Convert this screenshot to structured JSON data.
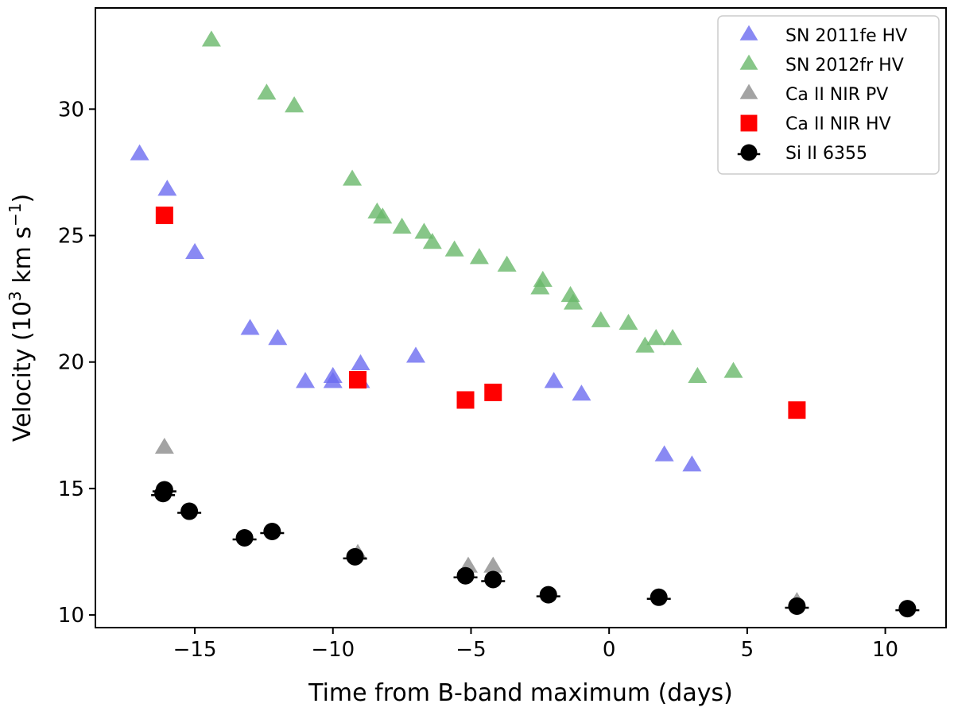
{
  "chart_data": {
    "type": "scatter",
    "xlabel": "Time from B-band maximum (days)",
    "ylabel": {
      "prefix": "Velocity (10",
      "sup1": "3",
      "mid": " km s",
      "sup2": "−1",
      "suffix": ")"
    },
    "xlim": [
      -18.6,
      12.2
    ],
    "ylim": [
      9.5,
      34.0
    ],
    "xticks": [
      -15,
      -10,
      -5,
      0,
      5,
      10
    ],
    "xtick_labels": [
      "−15",
      "−10",
      "−5",
      "0",
      "5",
      "10"
    ],
    "yticks": [
      10,
      15,
      20,
      25,
      30
    ],
    "ytick_labels": [
      "10",
      "15",
      "20",
      "25",
      "30"
    ],
    "grid": false,
    "legend_position": "top-right",
    "series": [
      {
        "name": "SN 2011fe HV",
        "marker": "triangle",
        "color": "#6b6bf0",
        "points": [
          [
            -17.0,
            28.2
          ],
          [
            -16.0,
            26.8
          ],
          [
            -15.0,
            24.3
          ],
          [
            -13.0,
            21.3
          ],
          [
            -12.0,
            20.9
          ],
          [
            -11.0,
            19.2
          ],
          [
            -10.0,
            19.2
          ],
          [
            -10.0,
            19.4
          ],
          [
            -9.0,
            19.9
          ],
          [
            -9.0,
            19.2
          ],
          [
            -7.0,
            20.2
          ],
          [
            -2.0,
            19.2
          ],
          [
            -1.0,
            18.7
          ],
          [
            2.0,
            16.3
          ],
          [
            3.0,
            15.9
          ]
        ]
      },
      {
        "name": "SN 2012fr HV",
        "marker": "triangle",
        "color": "#69b86a",
        "points": [
          [
            -14.4,
            32.7
          ],
          [
            -12.4,
            30.6
          ],
          [
            -11.4,
            30.1
          ],
          [
            -9.3,
            27.2
          ],
          [
            -8.4,
            25.9
          ],
          [
            -8.2,
            25.7
          ],
          [
            -7.5,
            25.3
          ],
          [
            -6.7,
            25.1
          ],
          [
            -6.4,
            24.7
          ],
          [
            -5.6,
            24.4
          ],
          [
            -4.7,
            24.1
          ],
          [
            -3.7,
            23.8
          ],
          [
            -2.4,
            23.2
          ],
          [
            -2.5,
            22.9
          ],
          [
            -1.4,
            22.6
          ],
          [
            -1.3,
            22.3
          ],
          [
            -0.3,
            21.6
          ],
          [
            0.7,
            21.5
          ],
          [
            1.7,
            20.9
          ],
          [
            1.3,
            20.6
          ],
          [
            2.3,
            20.9
          ],
          [
            3.2,
            19.4
          ],
          [
            4.5,
            19.6
          ]
        ]
      },
      {
        "name": "Ca II NIR PV",
        "marker": "triangle",
        "color": "#8c8c8c",
        "points": [
          [
            -16.1,
            16.6
          ],
          [
            -9.1,
            12.4
          ],
          [
            -5.1,
            11.9
          ],
          [
            -4.2,
            11.9
          ],
          [
            6.8,
            10.5
          ]
        ]
      },
      {
        "name": "Ca II NIR HV",
        "marker": "square",
        "color": "#ff0000",
        "points": [
          [
            -16.1,
            25.8
          ],
          [
            -9.1,
            19.3
          ],
          [
            -5.2,
            18.5
          ],
          [
            -4.2,
            18.8
          ],
          [
            6.8,
            18.1
          ]
        ]
      },
      {
        "name": "Si II 6355",
        "marker": "circle-errorbar",
        "color": "#000000",
        "points": [
          [
            -16.1,
            14.95
          ],
          [
            -16.15,
            14.8
          ],
          [
            -15.2,
            14.1
          ],
          [
            -13.2,
            13.05
          ],
          [
            -12.2,
            13.3
          ],
          [
            -9.2,
            12.3
          ],
          [
            -5.2,
            11.55
          ],
          [
            -4.2,
            11.4
          ],
          [
            -2.2,
            10.8
          ],
          [
            1.8,
            10.7
          ],
          [
            6.8,
            10.35
          ],
          [
            10.8,
            10.25
          ]
        ]
      }
    ]
  }
}
